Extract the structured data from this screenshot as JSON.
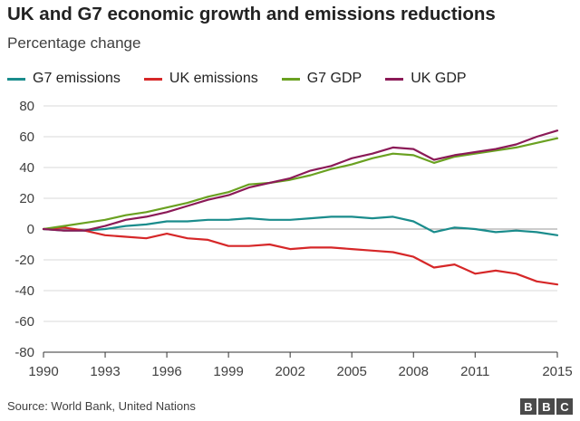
{
  "title": "UK and G7 economic growth and emissions reductions",
  "subtitle": "Percentage change",
  "source": "Source: World Bank, United Nations",
  "logo": [
    "B",
    "B",
    "C"
  ],
  "chart_data": {
    "type": "line",
    "x": [
      1990,
      1991,
      1992,
      1993,
      1994,
      1995,
      1996,
      1997,
      1998,
      1999,
      2000,
      2001,
      2002,
      2003,
      2004,
      2005,
      2006,
      2007,
      2008,
      2009,
      2010,
      2011,
      2012,
      2013,
      2014,
      2015
    ],
    "xticks": [
      1990,
      1993,
      1996,
      1999,
      2002,
      2005,
      2008,
      2011,
      2015
    ],
    "xlim": [
      1990,
      2015
    ],
    "yticks": [
      -80,
      -60,
      -40,
      -20,
      0,
      20,
      40,
      60,
      80
    ],
    "ylim": [
      -80,
      80
    ],
    "grid": true,
    "legend_position": "top",
    "series": [
      {
        "name": "G7 emissions",
        "color": "#1a8c8c",
        "values": [
          0,
          -1,
          -1,
          0,
          2,
          3,
          5,
          5,
          6,
          6,
          7,
          6,
          6,
          7,
          8,
          8,
          7,
          8,
          5,
          -2,
          1,
          0,
          -2,
          -1,
          -2,
          -4
        ]
      },
      {
        "name": "UK emissions",
        "color": "#d62728",
        "values": [
          0,
          1,
          -1,
          -4,
          -5,
          -6,
          -3,
          -6,
          -7,
          -11,
          -11,
          -10,
          -13,
          -12,
          -12,
          -13,
          -14,
          -15,
          -18,
          -25,
          -23,
          -29,
          -27,
          -29,
          -34,
          -36
        ]
      },
      {
        "name": "G7 GDP",
        "color": "#6aa121",
        "values": [
          0,
          2,
          4,
          6,
          9,
          11,
          14,
          17,
          21,
          24,
          29,
          30,
          32,
          35,
          39,
          42,
          46,
          49,
          48,
          43,
          47,
          49,
          51,
          53,
          56,
          59
        ]
      },
      {
        "name": "UK GDP",
        "color": "#8b1a57",
        "values": [
          0,
          -1,
          -1,
          2,
          6,
          8,
          11,
          15,
          19,
          22,
          27,
          30,
          33,
          38,
          41,
          46,
          49,
          53,
          52,
          45,
          48,
          50,
          52,
          55,
          60,
          64
        ]
      }
    ]
  }
}
